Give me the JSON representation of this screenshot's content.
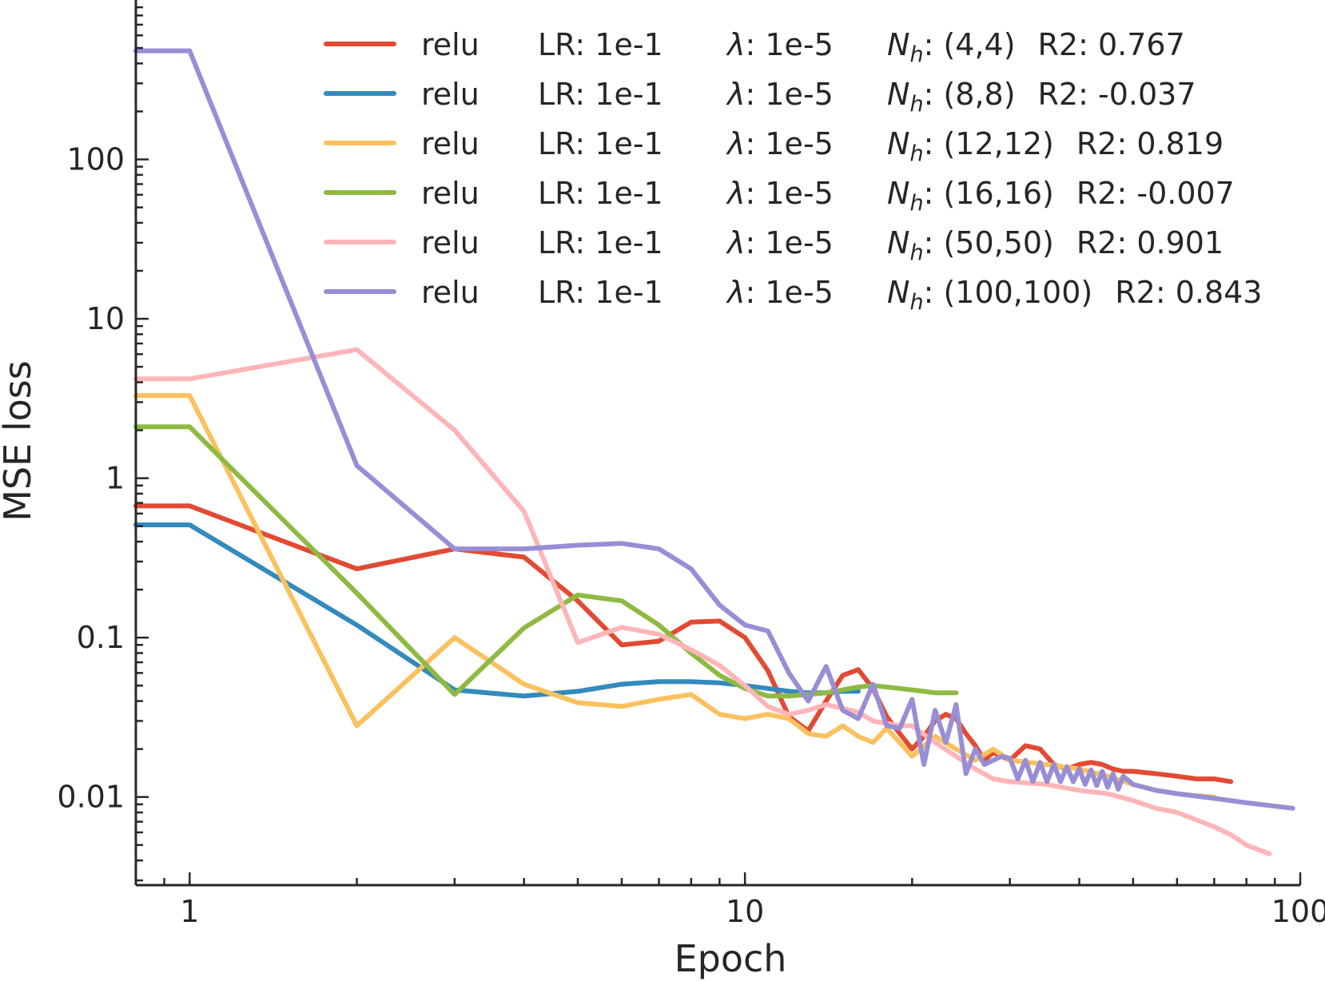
{
  "chart_data": {
    "type": "line",
    "xscale": "log",
    "yscale": "log",
    "xlabel": "Epoch",
    "ylabel": "MSE loss",
    "xlim": [
      0.8,
      100
    ],
    "ylim": [
      0.0028,
      1000
    ],
    "xticks": [
      {
        "value": 1,
        "label": "1"
      },
      {
        "value": 10,
        "label": "10"
      },
      {
        "value": 100,
        "label": "100"
      }
    ],
    "yticks": [
      {
        "value": 0.01,
        "label": "0.01"
      },
      {
        "value": 0.1,
        "label": "0.1"
      },
      {
        "value": 1,
        "label": "1"
      },
      {
        "value": 10,
        "label": "10"
      },
      {
        "value": 100,
        "label": "100"
      }
    ],
    "legend_position": "top-right",
    "series": [
      {
        "name": "relu (4,4)",
        "color": "#E24A33",
        "legend": {
          "activation": "relu",
          "lr": "LR: 1e-1",
          "lambda_sym": "λ",
          "lambda_val": ": 1e-5",
          "nh_sym": "N",
          "nh_sub": "h",
          "nh_val": ": (4,4)",
          "r2": "R2: 0.767"
        },
        "x": [
          0.8,
          1,
          2,
          3,
          4,
          5,
          6,
          7,
          8,
          9,
          10,
          11,
          12,
          13,
          14,
          15,
          16,
          17,
          18,
          19,
          20,
          21,
          22,
          23,
          24,
          25,
          26,
          27,
          28,
          29,
          30,
          32,
          34,
          36,
          38,
          40,
          42,
          44,
          46,
          48,
          50,
          55,
          60,
          65,
          70,
          75
        ],
        "y": [
          0.67,
          0.67,
          0.27,
          0.36,
          0.32,
          0.17,
          0.09,
          0.095,
          0.125,
          0.127,
          0.1,
          0.062,
          0.032,
          0.026,
          0.04,
          0.058,
          0.063,
          0.048,
          0.032,
          0.025,
          0.02,
          0.024,
          0.03,
          0.033,
          0.031,
          0.025,
          0.021,
          0.017,
          0.019,
          0.018,
          0.017,
          0.021,
          0.02,
          0.016,
          0.015,
          0.016,
          0.0165,
          0.016,
          0.015,
          0.0145,
          0.0145,
          0.014,
          0.0135,
          0.013,
          0.013,
          0.0125
        ]
      },
      {
        "name": "relu (8,8)",
        "color": "#348ABD",
        "legend": {
          "activation": "relu",
          "lr": "LR: 1e-1",
          "lambda_sym": "λ",
          "lambda_val": ": 1e-5",
          "nh_sym": "N",
          "nh_sub": "h",
          "nh_val": ": (8,8)",
          "r2": "R2: -0.037"
        },
        "x": [
          0.8,
          1,
          2,
          3,
          4,
          5,
          6,
          7,
          8,
          9,
          10,
          11,
          12,
          13,
          14,
          15,
          16
        ],
        "y": [
          0.51,
          0.51,
          0.12,
          0.047,
          0.043,
          0.046,
          0.051,
          0.053,
          0.053,
          0.052,
          0.05,
          0.048,
          0.046,
          0.045,
          0.045,
          0.046,
          0.046
        ]
      },
      {
        "name": "relu (12,12)",
        "color": "#FBC15E",
        "legend": {
          "activation": "relu",
          "lr": "LR: 1e-1",
          "lambda_sym": "λ",
          "lambda_val": ": 1e-5",
          "nh_sym": "N",
          "nh_sub": "h",
          "nh_val": ": (12,12)",
          "r2": "R2: 0.819"
        },
        "x": [
          0.8,
          1,
          2,
          3,
          4,
          5,
          6,
          7,
          8,
          9,
          10,
          11,
          12,
          13,
          14,
          15,
          16,
          17,
          18,
          19,
          20,
          22,
          24,
          26,
          28,
          30,
          35,
          40,
          45,
          50,
          55,
          60,
          65,
          70
        ],
        "y": [
          3.3,
          3.3,
          0.028,
          0.1,
          0.051,
          0.039,
          0.037,
          0.041,
          0.044,
          0.033,
          0.031,
          0.033,
          0.031,
          0.025,
          0.024,
          0.028,
          0.024,
          0.022,
          0.027,
          0.022,
          0.018,
          0.024,
          0.02,
          0.017,
          0.02,
          0.017,
          0.016,
          0.015,
          0.0135,
          0.012,
          0.011,
          0.0105,
          0.0102,
          0.01
        ]
      },
      {
        "name": "relu (16,16)",
        "color": "#8EBA42",
        "legend": {
          "activation": "relu",
          "lr": "LR: 1e-1",
          "lambda_sym": "λ",
          "lambda_val": ": 1e-5",
          "nh_sym": "N",
          "nh_sub": "h",
          "nh_val": ": (16,16)",
          "r2": "R2: -0.007"
        },
        "x": [
          0.8,
          1,
          2,
          3,
          4,
          5,
          6,
          7,
          8,
          9,
          10,
          11,
          12,
          13,
          14,
          15,
          16,
          17,
          18,
          19,
          20,
          21,
          22,
          23,
          24
        ],
        "y": [
          2.1,
          2.1,
          0.19,
          0.044,
          0.115,
          0.185,
          0.17,
          0.12,
          0.08,
          0.058,
          0.048,
          0.043,
          0.043,
          0.044,
          0.045,
          0.047,
          0.049,
          0.05,
          0.049,
          0.048,
          0.047,
          0.046,
          0.045,
          0.045,
          0.045
        ]
      },
      {
        "name": "relu (50,50)",
        "color": "#FFB5B8",
        "legend": {
          "activation": "relu",
          "lr": "LR: 1e-1",
          "lambda_sym": "λ",
          "lambda_val": ": 1e-5",
          "nh_sym": "N",
          "nh_sub": "h",
          "nh_val": ": (50,50)",
          "r2": "R2: 0.901"
        },
        "x": [
          0.8,
          1,
          2,
          3,
          4,
          5,
          6,
          7,
          8,
          9,
          10,
          11,
          12,
          13,
          14,
          15,
          16,
          17,
          18,
          19,
          20,
          22,
          24,
          26,
          28,
          30,
          35,
          40,
          45,
          50,
          55,
          60,
          65,
          70,
          75,
          80,
          88
        ],
        "y": [
          4.2,
          4.2,
          6.4,
          2.0,
          0.62,
          0.093,
          0.116,
          0.105,
          0.084,
          0.067,
          0.05,
          0.037,
          0.033,
          0.035,
          0.038,
          0.036,
          0.034,
          0.03,
          0.029,
          0.028,
          0.028,
          0.022,
          0.018,
          0.015,
          0.013,
          0.0125,
          0.012,
          0.011,
          0.0105,
          0.0095,
          0.0085,
          0.008,
          0.0072,
          0.0065,
          0.0058,
          0.005,
          0.0044
        ]
      },
      {
        "name": "relu (100,100)",
        "color": "#988ED5",
        "legend": {
          "activation": "relu",
          "lr": "LR: 1e-1",
          "lambda_sym": "λ",
          "lambda_val": ": 1e-5",
          "nh_sym": "N",
          "nh_sub": "h",
          "nh_val": ": (100,100)",
          "r2": "R2: 0.843"
        },
        "x": [
          0.8,
          1,
          2,
          3,
          4,
          5,
          6,
          7,
          8,
          9,
          10,
          11,
          12,
          13,
          14,
          15,
          16,
          17,
          18,
          19,
          20,
          21,
          22,
          23,
          24,
          25,
          26,
          27,
          28,
          29,
          30,
          31,
          32,
          33,
          34,
          35,
          36,
          37,
          38,
          39,
          40,
          41,
          42,
          43,
          44,
          45,
          46,
          47,
          48,
          50,
          55,
          60,
          70,
          80,
          97
        ],
        "y": [
          480,
          480,
          1.2,
          0.36,
          0.36,
          0.38,
          0.39,
          0.36,
          0.27,
          0.16,
          0.12,
          0.11,
          0.06,
          0.04,
          0.066,
          0.035,
          0.031,
          0.051,
          0.028,
          0.027,
          0.041,
          0.016,
          0.035,
          0.022,
          0.038,
          0.014,
          0.02,
          0.016,
          0.017,
          0.018,
          0.0175,
          0.013,
          0.017,
          0.0125,
          0.0165,
          0.0125,
          0.016,
          0.0125,
          0.0155,
          0.0125,
          0.015,
          0.012,
          0.0148,
          0.0118,
          0.0145,
          0.0115,
          0.014,
          0.0112,
          0.0135,
          0.012,
          0.011,
          0.0105,
          0.0098,
          0.0092,
          0.0085
        ]
      }
    ]
  }
}
